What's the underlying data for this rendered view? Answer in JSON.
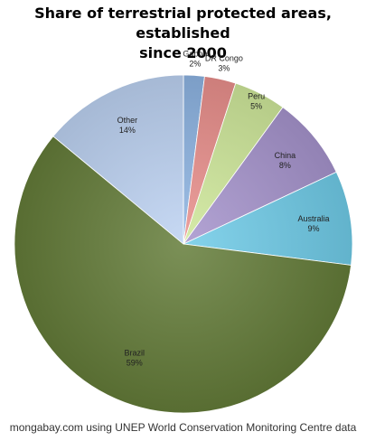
{
  "chart_data": {
    "type": "pie",
    "title_lines": [
      "Share of terrestrial protected areas, established",
      "since 2000"
    ],
    "slices": [
      {
        "label": "Gabon",
        "value": 2,
        "pct_label": "2%",
        "color": "#8db4e2"
      },
      {
        "label": "DR Congo",
        "value": 3,
        "pct_label": "3%",
        "color": "#e98f8c"
      },
      {
        "label": "Peru",
        "value": 5,
        "pct_label": "5%",
        "color": "#cfe89a"
      },
      {
        "label": "China",
        "value": 8,
        "pct_label": "8%",
        "color": "#a694cc"
      },
      {
        "label": "Australia",
        "value": 9,
        "pct_label": "9%",
        "color": "#6fcbe8"
      },
      {
        "label": "Brazil",
        "value": 59,
        "pct_label": "59%",
        "color": "#647c39"
      },
      {
        "label": "Other",
        "value": 14,
        "pct_label": "14%",
        "color": "#bdd2f2"
      }
    ]
  },
  "footer": "mongabay.com using UNEP World Conservation Monitoring Centre data"
}
